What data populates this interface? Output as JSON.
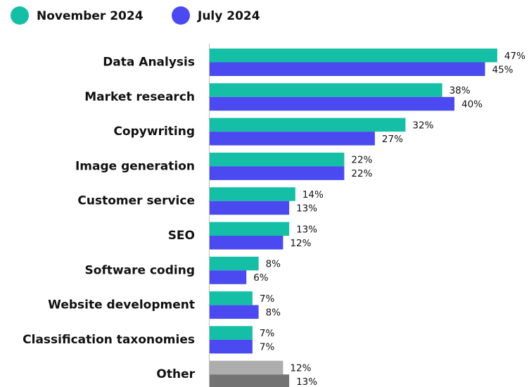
{
  "chart_data": {
    "type": "bar",
    "orientation": "horizontal",
    "categories": [
      "Data Analysis",
      "Market research",
      "Copywriting",
      "Image generation",
      "Customer service",
      "SEO",
      "Software coding",
      "Website development",
      "Classification taxonomies",
      "Other"
    ],
    "series": [
      {
        "name": "November 2024",
        "color": "#14bfa6",
        "colors": [
          "#14bfa6",
          "#14bfa6",
          "#14bfa6",
          "#14bfa6",
          "#14bfa6",
          "#14bfa6",
          "#14bfa6",
          "#14bfa6",
          "#14bfa6",
          "#adadad"
        ],
        "values": [
          47,
          38,
          32,
          22,
          14,
          13,
          8,
          7,
          7,
          12
        ],
        "value_labels": [
          "47%",
          "38%",
          "32%",
          "22%",
          "14%",
          "13%",
          "8%",
          "7%",
          "7%",
          "12%"
        ]
      },
      {
        "name": "July 2024",
        "color": "#4a4af0",
        "colors": [
          "#4a4af0",
          "#4a4af0",
          "#4a4af0",
          "#4a4af0",
          "#4a4af0",
          "#4a4af0",
          "#4a4af0",
          "#4a4af0",
          "#4a4af0",
          "#737373"
        ],
        "values": [
          45,
          40,
          27,
          22,
          13,
          12,
          6,
          8,
          7,
          13
        ],
        "value_labels": [
          "45%",
          "40%",
          "27%",
          "22%",
          "13%",
          "12%",
          "6%",
          "8%",
          "7%",
          "13%"
        ]
      }
    ],
    "legend": "top-left"
  }
}
